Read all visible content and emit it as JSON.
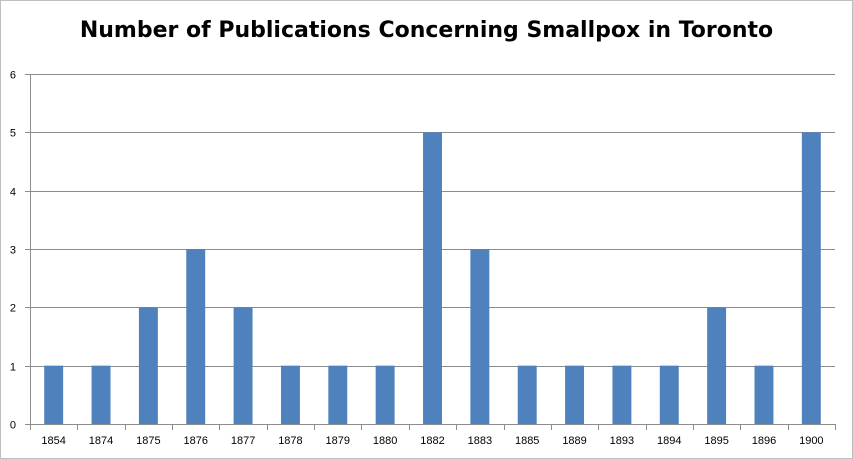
{
  "chart_data": {
    "type": "bar",
    "title": "Number of Publications Concerning Smallpox in Toronto",
    "xlabel": "",
    "ylabel": "",
    "categories": [
      "1854",
      "1874",
      "1875",
      "1876",
      "1877",
      "1878",
      "1879",
      "1880",
      "1882",
      "1883",
      "1885",
      "1889",
      "1893",
      "1894",
      "1895",
      "1896",
      "1900"
    ],
    "values": [
      1,
      1,
      2,
      3,
      2,
      1,
      1,
      1,
      5,
      3,
      1,
      1,
      1,
      1,
      2,
      1,
      5
    ],
    "ylim": [
      0,
      6
    ],
    "yticks": [
      "0",
      "1",
      "2",
      "3",
      "4",
      "5",
      "6"
    ],
    "grid": true,
    "legend": "none",
    "bar_color": "#4f81bd",
    "grid_color": "#8c8c8c"
  }
}
